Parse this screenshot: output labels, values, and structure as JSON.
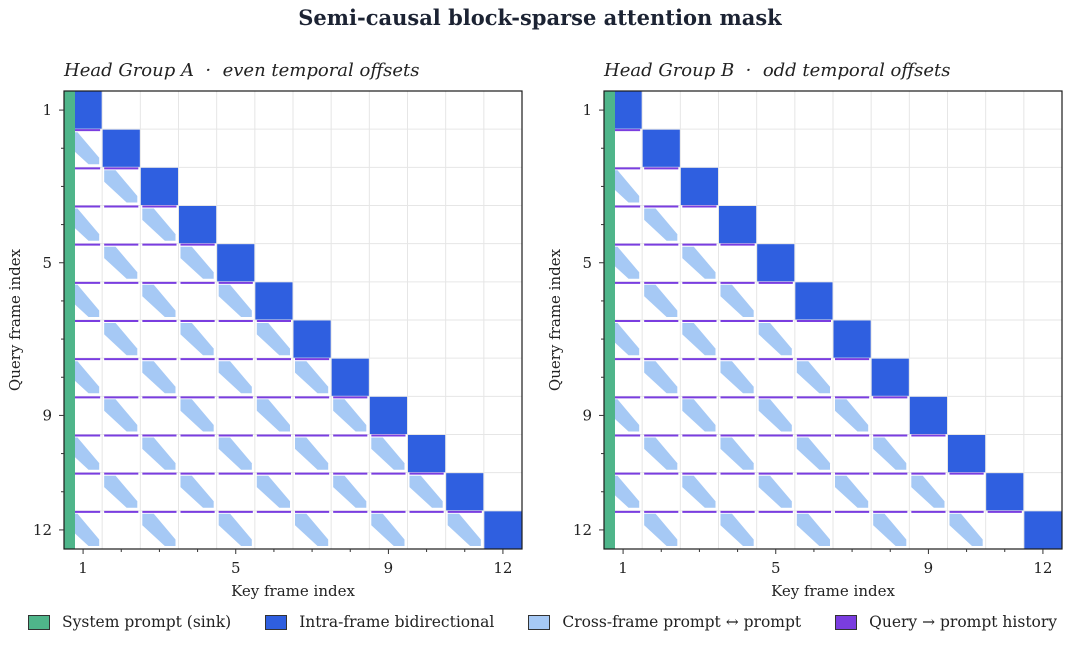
{
  "figure": {
    "title": "Semi-causal block-sparse attention mask"
  },
  "colors": {
    "sink": "#4fb58a",
    "intra": "#2f5fe0",
    "cross": "#a6c9f5",
    "history": "#7a3de0",
    "frame": "#1a1a1a",
    "grid": "#e6e6e6"
  },
  "legend": [
    {
      "label": "System prompt (sink)",
      "color": "#4fb58a"
    },
    {
      "label": "Intra-frame bidirectional",
      "color": "#2f5fe0"
    },
    {
      "label": "Cross-frame prompt ↔ prompt",
      "color": "#a6c9f5"
    },
    {
      "label": "Query → prompt history",
      "color": "#7a3de0"
    }
  ],
  "chart_data": [
    {
      "type": "heatmap",
      "title": "Head Group A  ·  even temporal offsets",
      "xlabel": "Key frame index",
      "ylabel": "Query frame index",
      "n_frames": 12,
      "xlim": [
        0.5,
        12.5
      ],
      "ylim": [
        12.5,
        0.5
      ],
      "xticks": [
        1,
        5,
        9,
        12
      ],
      "yticks": [
        1,
        5,
        9,
        12
      ],
      "grid": true,
      "sink_column": true,
      "intra_frame_diagonal": [
        1,
        2,
        3,
        4,
        5,
        6,
        7,
        8,
        9,
        10,
        11,
        12
      ],
      "cross_frame_offsets": [
        0,
        2,
        4,
        6,
        8,
        10
      ],
      "query_history_rows": [
        2,
        3,
        4,
        5,
        6,
        7,
        8,
        9,
        10,
        11,
        12
      ]
    },
    {
      "type": "heatmap",
      "title": "Head Group B  ·  odd temporal offsets",
      "xlabel": "Key frame index",
      "ylabel": "Query frame index",
      "n_frames": 12,
      "xlim": [
        0.5,
        12.5
      ],
      "ylim": [
        12.5,
        0.5
      ],
      "xticks": [
        1,
        5,
        9,
        12
      ],
      "yticks": [
        1,
        5,
        9,
        12
      ],
      "grid": true,
      "sink_column": true,
      "intra_frame_diagonal": [
        1,
        2,
        3,
        4,
        5,
        6,
        7,
        8,
        9,
        10,
        11,
        12
      ],
      "cross_frame_offsets": [
        1,
        3,
        5,
        7,
        9
      ],
      "query_history_rows": [
        2,
        3,
        4,
        5,
        6,
        7,
        8,
        9,
        10,
        11,
        12
      ]
    }
  ]
}
